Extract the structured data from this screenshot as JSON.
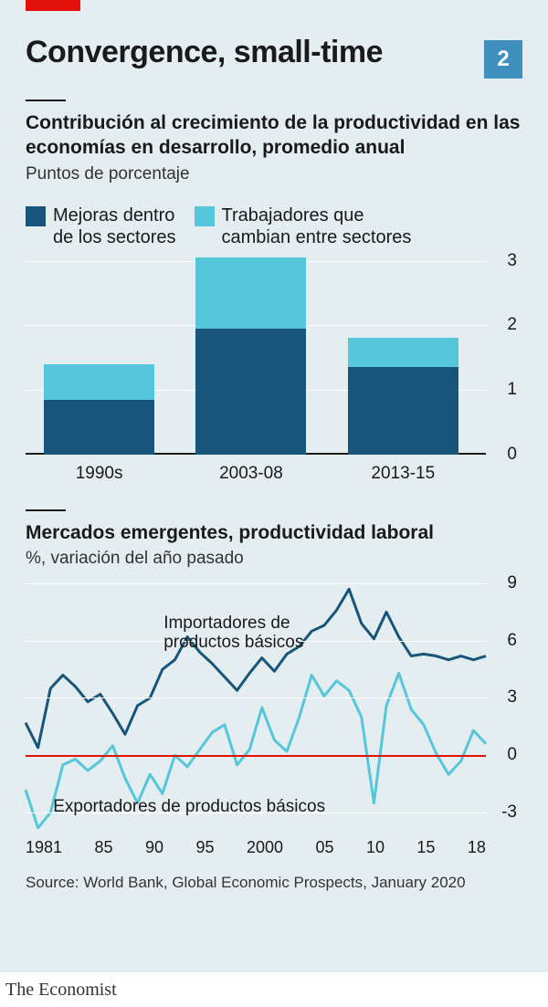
{
  "index": "2",
  "title": "Convergence, small-time",
  "colors": {
    "card_bg": "#e4edf0",
    "accent_red": "#e3120b",
    "text": "#1a1a1a",
    "grid": "#ffffff",
    "dark_blue": "#18557b",
    "light_blue": "#56c6db",
    "idx_bg": "#3f8fbf"
  },
  "bar_chart": {
    "subtitle": "Contribución al crecimiento de la productividad en las economías en desarrollo, promedio anual",
    "units": "Puntos de porcentaje",
    "legend": [
      {
        "color": "#18557b",
        "label": "Mejoras dentro\nde los sectores"
      },
      {
        "color": "#56c6db",
        "label": "Trabajadores que\ncambian entre sectores"
      }
    ],
    "ylim": [
      0,
      3
    ],
    "ytick_step": 1,
    "categories": [
      "1990s",
      "2003-08",
      "2013-15"
    ],
    "series": {
      "within": [
        0.85,
        1.95,
        1.35
      ],
      "between": [
        0.55,
        1.1,
        0.45
      ]
    }
  },
  "line_chart": {
    "subtitle": "Mercados emergentes, productividad laboral",
    "units": "%, variación del año pasado",
    "ylim": [
      -4,
      9
    ],
    "yticks": [
      -3,
      0,
      3,
      6,
      9
    ],
    "xlim": [
      1981,
      2018
    ],
    "xticks": [
      "1981",
      "85",
      "90",
      "95",
      "2000",
      "05",
      "10",
      "15",
      "18"
    ],
    "series": [
      {
        "name": "Importadores de productos básicos",
        "color": "#18557b",
        "width": 3,
        "label_pos": {
          "left_pct": 30,
          "top_pct": 12
        },
        "data": [
          [
            1981,
            1.7
          ],
          [
            1982,
            0.4
          ],
          [
            1983,
            3.5
          ],
          [
            1984,
            4.2
          ],
          [
            1985,
            3.6
          ],
          [
            1986,
            2.8
          ],
          [
            1987,
            3.2
          ],
          [
            1988,
            2.2
          ],
          [
            1989,
            1.1
          ],
          [
            1990,
            2.6
          ],
          [
            1991,
            3.0
          ],
          [
            1992,
            4.5
          ],
          [
            1993,
            5.0
          ],
          [
            1994,
            6.2
          ],
          [
            1995,
            5.4
          ],
          [
            1996,
            4.8
          ],
          [
            1997,
            4.1
          ],
          [
            1998,
            3.4
          ],
          [
            1999,
            4.3
          ],
          [
            2000,
            5.1
          ],
          [
            2001,
            4.4
          ],
          [
            2002,
            5.3
          ],
          [
            2003,
            5.7
          ],
          [
            2004,
            6.5
          ],
          [
            2005,
            6.8
          ],
          [
            2006,
            7.6
          ],
          [
            2007,
            8.7
          ],
          [
            2008,
            6.9
          ],
          [
            2009,
            6.1
          ],
          [
            2010,
            7.5
          ],
          [
            2011,
            6.2
          ],
          [
            2012,
            5.2
          ],
          [
            2013,
            5.3
          ],
          [
            2014,
            5.2
          ],
          [
            2015,
            5.0
          ],
          [
            2016,
            5.2
          ],
          [
            2017,
            5.0
          ],
          [
            2018,
            5.2
          ]
        ]
      },
      {
        "name": "Exportadores de productos básicos",
        "color": "#56c6db",
        "width": 3,
        "label_pos": {
          "left_pct": 6,
          "top_pct": 86
        },
        "data": [
          [
            1981,
            -1.8
          ],
          [
            1982,
            -3.8
          ],
          [
            1983,
            -3.0
          ],
          [
            1984,
            -0.5
          ],
          [
            1985,
            -0.2
          ],
          [
            1986,
            -0.8
          ],
          [
            1987,
            -0.3
          ],
          [
            1988,
            0.5
          ],
          [
            1989,
            -1.2
          ],
          [
            1990,
            -2.5
          ],
          [
            1991,
            -1.0
          ],
          [
            1992,
            -2.0
          ],
          [
            1993,
            0.0
          ],
          [
            1994,
            -0.6
          ],
          [
            1995,
            0.3
          ],
          [
            1996,
            1.2
          ],
          [
            1997,
            1.6
          ],
          [
            1998,
            -0.5
          ],
          [
            1999,
            0.3
          ],
          [
            2000,
            2.5
          ],
          [
            2001,
            0.8
          ],
          [
            2002,
            0.2
          ],
          [
            2003,
            2.0
          ],
          [
            2004,
            4.2
          ],
          [
            2005,
            3.1
          ],
          [
            2006,
            3.9
          ],
          [
            2007,
            3.4
          ],
          [
            2008,
            2.0
          ],
          [
            2009,
            -2.5
          ],
          [
            2010,
            2.6
          ],
          [
            2011,
            4.3
          ],
          [
            2012,
            2.4
          ],
          [
            2013,
            1.6
          ],
          [
            2014,
            0.1
          ],
          [
            2015,
            -1.0
          ],
          [
            2016,
            -0.3
          ],
          [
            2017,
            1.3
          ],
          [
            2018,
            0.6
          ]
        ]
      }
    ]
  },
  "source": "Source: World Bank, Global Economic Prospects, January 2020",
  "footer": "The Economist"
}
